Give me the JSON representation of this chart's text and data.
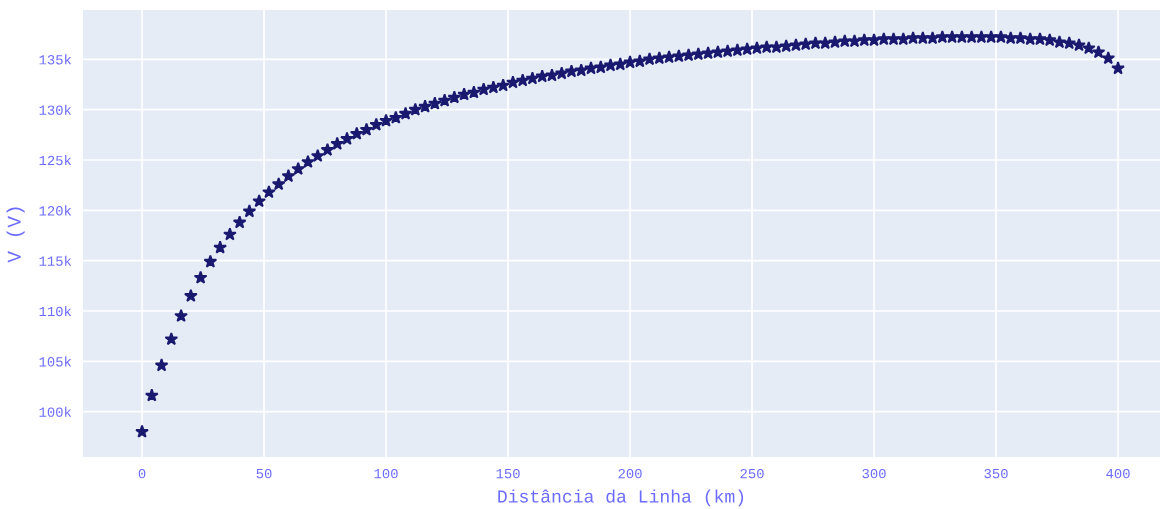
{
  "chart_data": {
    "type": "scatter",
    "xlabel": "Distância da Linha (km)",
    "ylabel": "V (V)",
    "x": [
      0,
      4,
      8,
      12,
      16,
      20,
      24,
      28,
      32,
      36,
      40,
      44,
      48,
      52,
      56,
      60,
      64,
      68,
      72,
      76,
      80,
      84,
      88,
      92,
      96,
      100,
      104,
      108,
      112,
      116,
      120,
      124,
      128,
      132,
      136,
      140,
      144,
      148,
      152,
      156,
      160,
      164,
      168,
      172,
      176,
      180,
      184,
      188,
      192,
      196,
      200,
      204,
      208,
      212,
      216,
      220,
      224,
      228,
      232,
      236,
      240,
      244,
      248,
      252,
      256,
      260,
      264,
      268,
      272,
      276,
      280,
      284,
      288,
      292,
      296,
      300,
      304,
      308,
      312,
      316,
      320,
      324,
      328,
      332,
      336,
      340,
      344,
      348,
      352,
      356,
      360,
      364,
      368,
      372,
      376,
      380,
      384,
      388,
      392,
      396,
      400
    ],
    "series": [
      {
        "color": "#191970",
        "values": [
          98000,
          101600,
          104600,
          107200,
          109500,
          111500,
          113300,
          114900,
          116300,
          117600,
          118800,
          119900,
          120900,
          121800,
          122600,
          123400,
          124100,
          124800,
          125400,
          126000,
          126600,
          127100,
          127600,
          128000,
          128500,
          128900,
          129200,
          129600,
          130000,
          130300,
          130600,
          130900,
          131200,
          131500,
          131700,
          132000,
          132200,
          132400,
          132700,
          132900,
          133100,
          133300,
          133400,
          133600,
          133800,
          133900,
          134100,
          134200,
          134400,
          134500,
          134700,
          134800,
          135000,
          135100,
          135200,
          135300,
          135400,
          135500,
          135600,
          135700,
          135800,
          135900,
          136000,
          136100,
          136200,
          136200,
          136300,
          136400,
          136500,
          136600,
          136600,
          136700,
          136800,
          136800,
          136900,
          136900,
          137000,
          137000,
          137000,
          137100,
          137100,
          137100,
          137200,
          137200,
          137200,
          137200,
          137200,
          137200,
          137200,
          137100,
          137100,
          137000,
          137000,
          136900,
          136700,
          136600,
          136400,
          136100,
          135700,
          135100,
          134100
        ]
      }
    ],
    "xlim": [
      -24.2,
      417.2
    ],
    "xticks": [
      0,
      50,
      100,
      150,
      200,
      250,
      300,
      350,
      400
    ],
    "ylim": [
      95500,
      139900
    ],
    "yticks": [
      {
        "value": 100000,
        "label": "100k"
      },
      {
        "value": 105000,
        "label": "105k"
      },
      {
        "value": 110000,
        "label": "110k"
      },
      {
        "value": 115000,
        "label": "115k"
      },
      {
        "value": 120000,
        "label": "120k"
      },
      {
        "value": 125000,
        "label": "125k"
      },
      {
        "value": 130000,
        "label": "130k"
      },
      {
        "value": 135000,
        "label": "135k"
      }
    ],
    "grid": true,
    "marker": "star"
  }
}
